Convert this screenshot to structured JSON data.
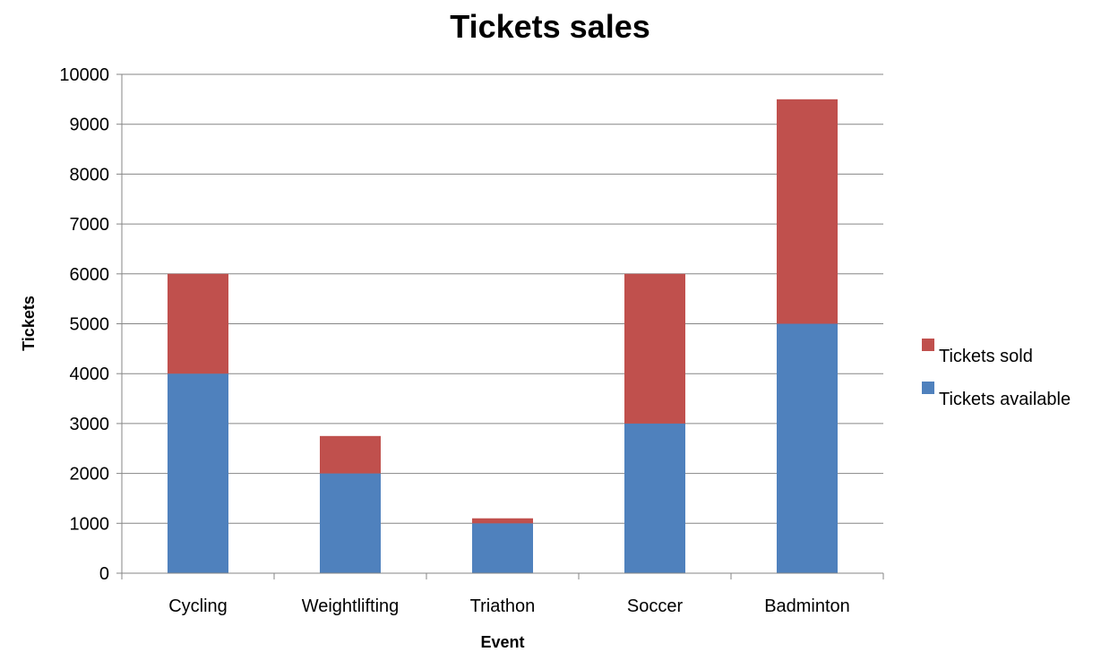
{
  "chart_data": {
    "type": "bar",
    "stacked": true,
    "title": "Tickets sales",
    "xlabel": "Event",
    "ylabel": "Tickets",
    "categories": [
      "Cycling",
      "Weightlifting",
      "Triathon",
      "Soccer",
      "Badminton"
    ],
    "series": [
      {
        "name": "Tickets available",
        "color": "#4F81BD",
        "values": [
          4000,
          2000,
          1000,
          3000,
          5000
        ]
      },
      {
        "name": "Tickets sold",
        "color": "#C0504D",
        "values": [
          2000,
          750,
          100,
          3000,
          4500
        ]
      }
    ],
    "ylim": [
      0,
      10000
    ],
    "yticks": [
      "0",
      "1000",
      "2000",
      "3000",
      "4000",
      "5000",
      "6000",
      "7000",
      "8000",
      "9000",
      "10000"
    ],
    "grid": true,
    "legend_position": "right"
  }
}
